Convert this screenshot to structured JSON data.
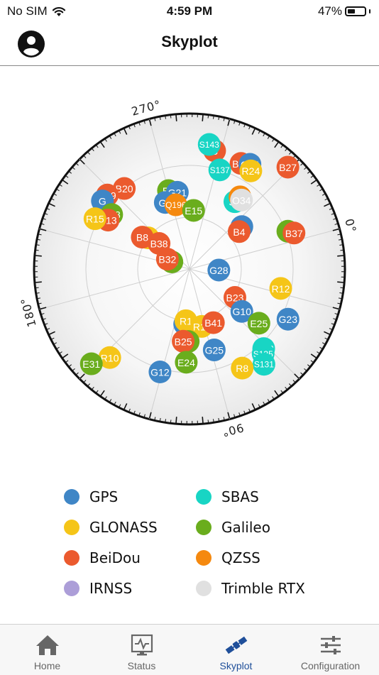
{
  "status_bar": {
    "carrier": "No SIM",
    "time": "4:59 PM",
    "battery": "47%",
    "battery_level": 0.47
  },
  "header": {
    "title": "Skyplot"
  },
  "skyplot": {
    "angle_labels": [
      {
        "text": "270°",
        "deg": 270
      },
      {
        "text": "0°",
        "deg": 0
      },
      {
        "text": "180°",
        "deg": 180
      },
      {
        "text": "90°",
        "deg": 90
      }
    ],
    "satellites": [
      {
        "id": "B",
        "c": "beidou",
        "az": 297,
        "el": 20
      },
      {
        "id": "S143",
        "c": "sbas",
        "az": 294,
        "el": 17
      },
      {
        "id": "B39",
        "c": "beidou",
        "az": 311,
        "el": 22
      },
      {
        "id": "G24",
        "c": "gps",
        "az": 315,
        "el": 20
      },
      {
        "id": "R24",
        "c": "glonass",
        "az": 317,
        "el": 23
      },
      {
        "id": "B27",
        "c": "beidou",
        "az": 329,
        "el": 8
      },
      {
        "id": "S137",
        "c": "sbas",
        "az": 302,
        "el": 30
      },
      {
        "id": "B20",
        "c": "beidou",
        "az": 246,
        "el": 30
      },
      {
        "id": "E8",
        "c": "galileo",
        "az": 270,
        "el": 43
      },
      {
        "id": "G21",
        "c": "gps",
        "az": 276,
        "el": 45
      },
      {
        "id": "G2",
        "c": "gps",
        "az": 265,
        "el": 49
      },
      {
        "id": "Q196",
        "c": "qzss",
        "az": 273,
        "el": 52
      },
      {
        "id": "E15",
        "c": "galileo",
        "az": 289,
        "el": 56
      },
      {
        "id": "S1",
        "c": "sbas",
        "az": 319,
        "el": 43
      },
      {
        "id": "Q5",
        "c": "qzss",
        "az": 320,
        "el": 39
      },
      {
        "id": "O34",
        "c": "rtx",
        "az": 322,
        "el": 40
      },
      {
        "id": "B29",
        "c": "beidou",
        "az": 237,
        "el": 26
      },
      {
        "id": "G",
        "c": "gps",
        "az": 233,
        "el": 26
      },
      {
        "id": "E13",
        "c": "galileo",
        "az": 230,
        "el": 35
      },
      {
        "id": "B13",
        "c": "beidou",
        "az": 226,
        "el": 35
      },
      {
        "id": "R15",
        "c": "glonass",
        "az": 223,
        "el": 28
      },
      {
        "id": "E",
        "c": "galileo",
        "az": 354,
        "el": 29
      },
      {
        "id": "B37",
        "c": "beidou",
        "az": 356,
        "el": 26
      },
      {
        "id": "G",
        "c": "gps",
        "az": 336,
        "el": 51
      },
      {
        "id": "B4",
        "c": "beidou",
        "az": 338,
        "el": 54
      },
      {
        "id": "R",
        "c": "glonass",
        "az": 232,
        "el": 60
      },
      {
        "id": "B8",
        "c": "beidou",
        "az": 229,
        "el": 57
      },
      {
        "id": "B38",
        "c": "beidou",
        "az": 235,
        "el": 67
      },
      {
        "id": "E3",
        "c": "galileo",
        "az": 217,
        "el": 79
      },
      {
        "id": "B32",
        "c": "beidou",
        "az": 219,
        "el": 76
      },
      {
        "id": "G28",
        "c": "gps",
        "az": 17,
        "el": 73
      },
      {
        "id": "R12",
        "c": "glonass",
        "az": 27,
        "el": 36
      },
      {
        "id": "B23",
        "c": "beidou",
        "az": 47,
        "el": 59
      },
      {
        "id": "G10",
        "c": "gps",
        "az": 54,
        "el": 51
      },
      {
        "id": "E25",
        "c": "galileo",
        "az": 53,
        "el": 39
      },
      {
        "id": "G23",
        "c": "gps",
        "az": 42,
        "el": 26
      },
      {
        "id": "G",
        "c": "gps",
        "az": 110,
        "el": 58
      },
      {
        "id": "R1",
        "c": "glonass",
        "az": 109,
        "el": 60
      },
      {
        "id": "R11",
        "c": "glonass",
        "az": 93,
        "el": 56
      },
      {
        "id": "B41",
        "c": "beidou",
        "az": 81,
        "el": 56
      },
      {
        "id": "E",
        "c": "galileo",
        "az": 106,
        "el": 48
      },
      {
        "id": "B25",
        "c": "beidou",
        "az": 110,
        "el": 48
      },
      {
        "id": "R10",
        "c": "glonass",
        "az": 147,
        "el": 21
      },
      {
        "id": "E31",
        "c": "galileo",
        "az": 151,
        "el": 11
      },
      {
        "id": "G12",
        "c": "gps",
        "az": 121,
        "el": 28
      },
      {
        "id": "E24",
        "c": "galileo",
        "az": 107,
        "el": 36
      },
      {
        "id": "G25",
        "c": "gps",
        "az": 88,
        "el": 41
      },
      {
        "id": "S133",
        "c": "sbas",
        "az": 62,
        "el": 27
      },
      {
        "id": "S135",
        "c": "sbas",
        "az": 64,
        "el": 25
      },
      {
        "id": "S131",
        "c": "sbas",
        "az": 67,
        "el": 20
      },
      {
        "id": "R8",
        "c": "glonass",
        "az": 77,
        "el": 25
      }
    ]
  },
  "constellations": {
    "gps": {
      "name": "GPS",
      "color": "#3f86c6"
    },
    "glonass": {
      "name": "GLONASS",
      "color": "#f5c518"
    },
    "beidou": {
      "name": "BeiDou",
      "color": "#eb5a2e"
    },
    "irnss": {
      "name": "IRNSS",
      "color": "#ac9ed8"
    },
    "sbas": {
      "name": "SBAS",
      "color": "#18d5c4"
    },
    "galileo": {
      "name": "Galileo",
      "color": "#6aad1d"
    },
    "qzss": {
      "name": "QZSS",
      "color": "#f5890f"
    },
    "rtx": {
      "name": "Trimble RTX",
      "color": "#e0e0e0"
    }
  },
  "legend": [
    {
      "key": "gps",
      "label": "GPS"
    },
    {
      "key": "glonass",
      "label": "GLONASS"
    },
    {
      "key": "beidou",
      "label": "BeiDou"
    },
    {
      "key": "irnss",
      "label": "IRNSS"
    },
    {
      "key": "sbas",
      "label": "SBAS"
    },
    {
      "key": "galileo",
      "label": "Galileo"
    },
    {
      "key": "qzss",
      "label": "QZSS"
    },
    {
      "key": "rtx",
      "label": "Trimble RTX"
    }
  ],
  "tabs": [
    {
      "label": "Home",
      "icon": "home-icon",
      "active": false
    },
    {
      "label": "Status",
      "icon": "status-monitor-icon",
      "active": false
    },
    {
      "label": "Skyplot",
      "icon": "satellite-icon",
      "active": true
    },
    {
      "label": "Configuration",
      "icon": "sliders-icon",
      "active": false
    }
  ]
}
